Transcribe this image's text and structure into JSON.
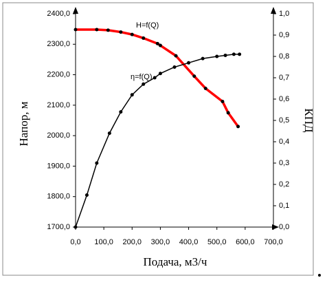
{
  "chart_data": {
    "type": "line",
    "x_label": "Подача, м3/ч",
    "y_label": "Напор, м",
    "y2_label": "КПД",
    "xlim": [
      0,
      700
    ],
    "xticks": [
      {
        "value": 0,
        "label": "0,0"
      },
      {
        "value": 100,
        "label": "100,0"
      },
      {
        "value": 200,
        "label": "200,0"
      },
      {
        "value": 300,
        "label": "300,0"
      },
      {
        "value": 400,
        "label": "400,0"
      },
      {
        "value": 500,
        "label": "500,0"
      },
      {
        "value": 600,
        "label": "600,0"
      },
      {
        "value": 700,
        "label": "700,0"
      }
    ],
    "ylim": [
      1700,
      2400
    ],
    "yticks": [
      {
        "value": 1700,
        "label": "1700,0"
      },
      {
        "value": 1800,
        "label": "1800,0"
      },
      {
        "value": 1900,
        "label": "1900,0"
      },
      {
        "value": 2000,
        "label": "2000,0"
      },
      {
        "value": 2100,
        "label": "2100,0"
      },
      {
        "value": 2200,
        "label": "2200,0"
      },
      {
        "value": 2300,
        "label": "2300,0"
      },
      {
        "value": 2400,
        "label": "2400,0"
      }
    ],
    "y2lim": [
      0,
      1
    ],
    "y2ticks": [
      {
        "value": 0,
        "label": "0,0"
      },
      {
        "value": 0.1,
        "label": "0,1"
      },
      {
        "value": 0.2,
        "label": "0,2"
      },
      {
        "value": 0.3,
        "label": "0,3"
      },
      {
        "value": 0.4,
        "label": "0,4"
      },
      {
        "value": 0.5,
        "label": "0,5"
      },
      {
        "value": 0.6,
        "label": "0,6"
      },
      {
        "value": 0.7,
        "label": "0,7"
      },
      {
        "value": 0.8,
        "label": "0,8"
      },
      {
        "value": 0.9,
        "label": "0,9"
      },
      {
        "value": 1,
        "label": "1,0"
      }
    ],
    "series": [
      {
        "name": "H=f(Q)",
        "color": "#ff0000",
        "x": [
          0,
          75,
          115,
          160,
          200,
          240,
          290,
          300,
          355,
          420,
          460,
          520,
          540,
          575
        ],
        "values": [
          2348,
          2348,
          2346,
          2340,
          2332,
          2320,
          2302,
          2296,
          2262,
          2195,
          2155,
          2112,
          2075,
          2030
        ]
      },
      {
        "name": "η=f(Q)",
        "color": "#000000",
        "axis": "y2",
        "x": [
          0,
          40,
          75,
          120,
          160,
          200,
          240,
          280,
          300,
          350,
          400,
          450,
          500,
          530,
          560,
          580
        ],
        "values": [
          0,
          0.15,
          0.3,
          0.44,
          0.54,
          0.62,
          0.67,
          0.7,
          0.72,
          0.75,
          0.77,
          0.79,
          0.8,
          0.805,
          0.81,
          0.81
        ]
      }
    ]
  }
}
